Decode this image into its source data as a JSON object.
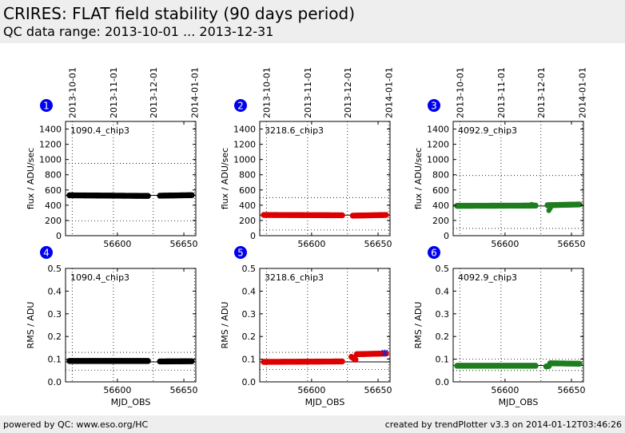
{
  "header": {
    "title": "CRIRES: FLAT field stability (90 days period)",
    "subtitle": "QC data range: 2013-10-01 ... 2013-12-31"
  },
  "footer": {
    "left": "powered by QC: www.eso.org/HC",
    "right": "created by trendPlotter v3.3 on 2014-01-12T03:46:26"
  },
  "colors": {
    "black": "#000000",
    "red": "#dd0000",
    "green": "#1e7d1e",
    "blue": "#2222cc",
    "badge": "#0000ee"
  },
  "chart_data": [
    {
      "type": "scatter",
      "panel": "1",
      "label": "1090.4_chip3",
      "xlabel": "",
      "ylabel": "flux / ADU/sec",
      "xlim": [
        56561,
        56659
      ],
      "ylim": [
        0,
        1500
      ],
      "yticks": [
        0,
        200,
        400,
        600,
        800,
        1000,
        1200,
        1400
      ],
      "xticks": [
        56600,
        56650
      ],
      "date_ticks": [
        {
          "x": 56566,
          "label": "2013-10-01"
        },
        {
          "x": 56597,
          "label": "2013-11-01"
        },
        {
          "x": 56627,
          "label": "2013-12-01"
        },
        {
          "x": 56658,
          "label": "2014-01-01"
        }
      ],
      "ref_lines": [
        {
          "y": 530,
          "style": "solid"
        },
        {
          "y": 950,
          "style": "dotted"
        },
        {
          "y": 195,
          "style": "dotted"
        }
      ],
      "series": [
        {
          "color": "black",
          "segments": [
            {
              "x0": 56564,
              "x1": 56623,
              "y0": 530,
              "y1": 522
            },
            {
              "x0": 56632,
              "x1": 56656,
              "y0": 525,
              "y1": 532
            }
          ]
        }
      ]
    },
    {
      "type": "scatter",
      "panel": "2",
      "label": "3218.6_chip3",
      "xlabel": "",
      "ylabel": "flux / ADU/sec",
      "xlim": [
        56561,
        56659
      ],
      "ylim": [
        0,
        1500
      ],
      "yticks": [
        0,
        200,
        400,
        600,
        800,
        1000,
        1200,
        1400
      ],
      "xticks": [
        56600,
        56650
      ],
      "date_ticks": [
        {
          "x": 56566,
          "label": "2013-10-01"
        },
        {
          "x": 56597,
          "label": "2013-11-01"
        },
        {
          "x": 56627,
          "label": "2013-12-01"
        },
        {
          "x": 56658,
          "label": "2014-01-01"
        }
      ],
      "ref_lines": [
        {
          "y": 270,
          "style": "solid"
        },
        {
          "y": 500,
          "style": "dotted"
        },
        {
          "y": 75,
          "style": "dotted"
        }
      ],
      "series": [
        {
          "color": "red",
          "segments": [
            {
              "x0": 56564,
              "x1": 56623,
              "y0": 272,
              "y1": 268
            },
            {
              "x0": 56631,
              "x1": 56656,
              "y0": 263,
              "y1": 272
            }
          ]
        }
      ]
    },
    {
      "type": "scatter",
      "panel": "3",
      "label": "4092.9_chip3",
      "xlabel": "",
      "ylabel": "flux / ADU/sec",
      "xlim": [
        56561,
        56659
      ],
      "ylim": [
        0,
        1500
      ],
      "yticks": [
        0,
        200,
        400,
        600,
        800,
        1000,
        1200,
        1400
      ],
      "xticks": [
        56600,
        56650
      ],
      "date_ticks": [
        {
          "x": 56566,
          "label": "2013-10-01"
        },
        {
          "x": 56597,
          "label": "2013-11-01"
        },
        {
          "x": 56627,
          "label": "2013-12-01"
        },
        {
          "x": 56658,
          "label": "2014-01-01"
        }
      ],
      "ref_lines": [
        {
          "y": 390,
          "style": "solid"
        },
        {
          "y": 790,
          "style": "dotted"
        },
        {
          "y": 95,
          "style": "dotted"
        }
      ],
      "series": [
        {
          "color": "green",
          "segments": [
            {
              "x0": 56564,
              "x1": 56623,
              "y0": 392,
              "y1": 395
            },
            {
              "x0": 56632,
              "x1": 56656,
              "y0": 400,
              "y1": 410
            }
          ]
        }
      ],
      "extra_points": [
        {
          "x": 56633,
          "y": 330
        },
        {
          "x": 56634,
          "y": 360
        },
        {
          "x": 56620,
          "y": 410
        }
      ]
    },
    {
      "type": "scatter",
      "panel": "4",
      "label": "1090.4_chip3",
      "xlabel": "MJD_OBS",
      "ylabel": "RMS / ADU",
      "xlim": [
        56561,
        56659
      ],
      "ylim": [
        0,
        0.5
      ],
      "yticks": [
        0.0,
        0.1,
        0.2,
        0.3,
        0.4,
        0.5
      ],
      "xticks": [
        56600,
        56650
      ],
      "ref_lines": [
        {
          "y": 0.088,
          "style": "solid"
        },
        {
          "y": 0.13,
          "style": "dotted"
        },
        {
          "y": 0.052,
          "style": "dotted"
        }
      ],
      "series": [
        {
          "color": "black",
          "segments": [
            {
              "x0": 56564,
              "x1": 56623,
              "y0": 0.092,
              "y1": 0.092
            },
            {
              "x0": 56632,
              "x1": 56656,
              "y0": 0.09,
              "y1": 0.091
            }
          ]
        }
      ]
    },
    {
      "type": "scatter",
      "panel": "5",
      "label": "3218.6_chip3",
      "xlabel": "MJD_OBS",
      "ylabel": "RMS / ADU",
      "xlim": [
        56561,
        56659
      ],
      "ylim": [
        0,
        0.5
      ],
      "yticks": [
        0.0,
        0.1,
        0.2,
        0.3,
        0.4,
        0.5
      ],
      "xticks": [
        56600,
        56650
      ],
      "ref_lines": [
        {
          "y": 0.088,
          "style": "solid"
        },
        {
          "y": 0.13,
          "style": "dotted"
        },
        {
          "y": 0.055,
          "style": "dotted"
        }
      ],
      "series": [
        {
          "color": "red",
          "segments": [
            {
              "x0": 56564,
              "x1": 56623,
              "y0": 0.088,
              "y1": 0.09
            },
            {
              "x0": 56630,
              "x1": 56633,
              "y0": 0.11,
              "y1": 0.098
            },
            {
              "x0": 56634,
              "x1": 56656,
              "y0": 0.122,
              "y1": 0.125
            }
          ]
        }
      ],
      "blue_marker": {
        "x": 56655,
        "y": 0.128
      }
    },
    {
      "type": "scatter",
      "panel": "6",
      "label": "4092.9_chip3",
      "xlabel": "MJD_OBS",
      "ylabel": "RMS / ADU",
      "xlim": [
        56561,
        56659
      ],
      "ylim": [
        0,
        0.5
      ],
      "yticks": [
        0.0,
        0.1,
        0.2,
        0.3,
        0.4,
        0.5
      ],
      "xticks": [
        56600,
        56650
      ],
      "ref_lines": [
        {
          "y": 0.072,
          "style": "solid"
        },
        {
          "y": 0.1,
          "style": "dotted"
        },
        {
          "y": 0.05,
          "style": "dotted"
        }
      ],
      "series": [
        {
          "color": "green",
          "segments": [
            {
              "x0": 56564,
              "x1": 56623,
              "y0": 0.071,
              "y1": 0.071
            },
            {
              "x0": 56631,
              "x1": 56633,
              "y0": 0.068,
              "y1": 0.07
            },
            {
              "x0": 56634,
              "x1": 56656,
              "y0": 0.082,
              "y1": 0.08
            }
          ]
        }
      ]
    }
  ]
}
